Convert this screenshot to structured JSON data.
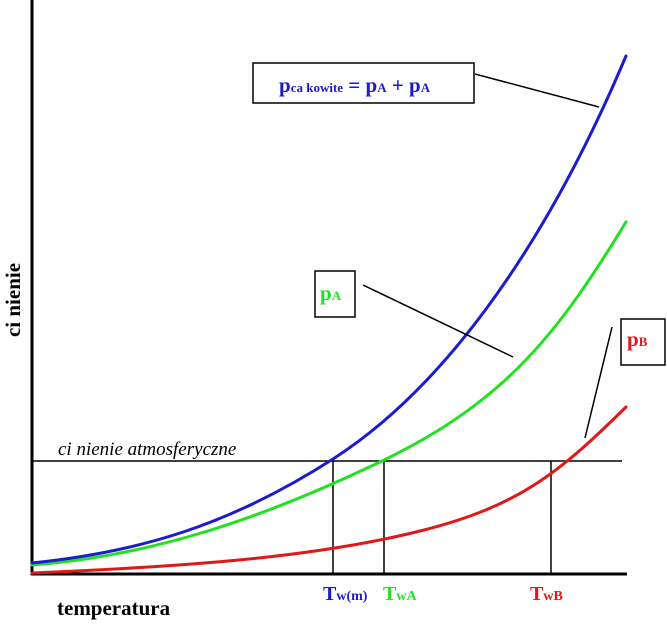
{
  "diagram": {
    "y_axis_label": "ci  nienie",
    "x_axis_label": "temperatura",
    "atm_label": "ci  nienie atmosferyczne",
    "labels": {
      "total": {
        "main": "p",
        "sub1": "ca kowite",
        "eq": " = p",
        "sub2": "A",
        "plus": " + p",
        "sub3": "A"
      },
      "pA": {
        "main": "p",
        "sub": "A"
      },
      "pB": {
        "main": "p",
        "sub": "B"
      }
    },
    "ticks": {
      "twm": {
        "main": "T",
        "sub": "w(m)"
      },
      "twa": {
        "main": "T",
        "sub": "wA"
      },
      "twb": {
        "main": "T",
        "sub": "wB"
      }
    },
    "colors": {
      "total": "#1c1ccc",
      "pA": "#22e022",
      "pB": "#e01818",
      "axis": "#000000"
    }
  }
}
